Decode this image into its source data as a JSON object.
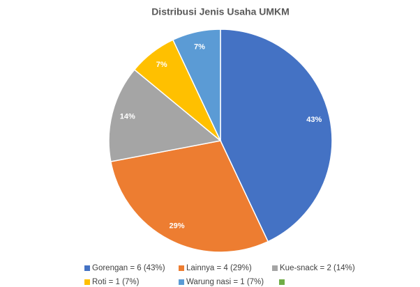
{
  "chart_data": {
    "type": "pie",
    "title": "Distribusi Jenis Usaha UMKM",
    "categories": [
      "Gorengan = 6 (43%)",
      "Lainnya = 4 (29%)",
      "Kue-snack = 2 (14%)",
      "Roti = 1 (7%)",
      "Warung nasi = 1 (7%)"
    ],
    "values": [
      43,
      29,
      14,
      7,
      7
    ],
    "value_labels": [
      "43%",
      "29%",
      "14%",
      "7%",
      "7%"
    ],
    "colors": [
      "#4472c4",
      "#ed7d31",
      "#a5a5a5",
      "#ffc000",
      "#5b9bd5"
    ],
    "legend": "bottom"
  }
}
